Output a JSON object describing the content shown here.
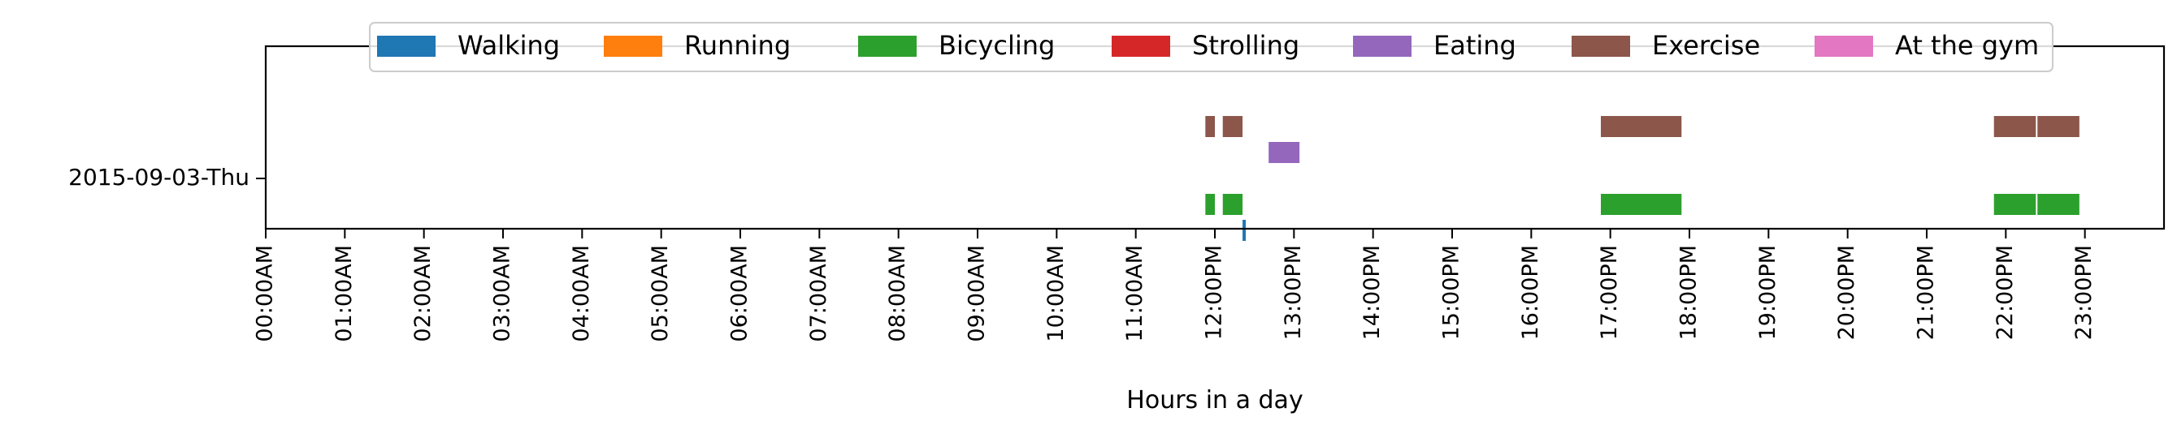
{
  "chart_data": {
    "type": "timeline",
    "xlabel": "Hours in a day",
    "x_unit": "hour",
    "xlim": [
      0,
      24
    ],
    "x_ticks": [
      {
        "value": 0,
        "label": "00:00AM"
      },
      {
        "value": 1,
        "label": "01:00AM"
      },
      {
        "value": 2,
        "label": "02:00AM"
      },
      {
        "value": 3,
        "label": "03:00AM"
      },
      {
        "value": 4,
        "label": "04:00AM"
      },
      {
        "value": 5,
        "label": "05:00AM"
      },
      {
        "value": 6,
        "label": "06:00AM"
      },
      {
        "value": 7,
        "label": "07:00AM"
      },
      {
        "value": 8,
        "label": "08:00AM"
      },
      {
        "value": 9,
        "label": "09:00AM"
      },
      {
        "value": 10,
        "label": "10:00AM"
      },
      {
        "value": 11,
        "label": "11:00AM"
      },
      {
        "value": 12,
        "label": "12:00PM"
      },
      {
        "value": 13,
        "label": "13:00PM"
      },
      {
        "value": 14,
        "label": "14:00PM"
      },
      {
        "value": 15,
        "label": "15:00PM"
      },
      {
        "value": 16,
        "label": "16:00PM"
      },
      {
        "value": 17,
        "label": "17:00PM"
      },
      {
        "value": 18,
        "label": "18:00PM"
      },
      {
        "value": 19,
        "label": "19:00PM"
      },
      {
        "value": 20,
        "label": "20:00PM"
      },
      {
        "value": 21,
        "label": "21:00PM"
      },
      {
        "value": 22,
        "label": "22:00PM"
      },
      {
        "value": 23,
        "label": "23:00PM"
      }
    ],
    "day_label": "2015-09-03-Thu",
    "legend": {
      "placement": "top-center",
      "entries": [
        {
          "name": "Walking",
          "color": "#1f77b4"
        },
        {
          "name": "Running",
          "color": "#ff7f0e"
        },
        {
          "name": "Bicycling",
          "color": "#2ca02c"
        },
        {
          "name": "Strolling",
          "color": "#d62728"
        },
        {
          "name": "Eating",
          "color": "#9467bd"
        },
        {
          "name": "Exercise",
          "color": "#8c564b"
        },
        {
          "name": "At the gym",
          "color": "#e377c2"
        }
      ]
    },
    "series": [
      {
        "name": "Walking",
        "color": "#1f77b4",
        "lane": -0.5,
        "intervals": [
          [
            12.35,
            12.38
          ]
        ]
      },
      {
        "name": "Bicycling",
        "color": "#2ca02c",
        "lane": -0.25,
        "intervals": [
          [
            11.88,
            12.0
          ],
          [
            12.1,
            12.35
          ],
          [
            16.88,
            17.9
          ],
          [
            21.85,
            22.38
          ],
          [
            22.4,
            22.93
          ]
        ]
      },
      {
        "name": "Eating",
        "color": "#9467bd",
        "lane": 0.25,
        "intervals": [
          [
            12.68,
            13.07
          ]
        ]
      },
      {
        "name": "Exercise",
        "color": "#8c564b",
        "lane": 0.5,
        "intervals": [
          [
            11.88,
            12.0
          ],
          [
            12.1,
            12.35
          ],
          [
            16.88,
            17.9
          ],
          [
            21.85,
            22.38
          ],
          [
            22.4,
            22.93
          ]
        ]
      }
    ]
  }
}
